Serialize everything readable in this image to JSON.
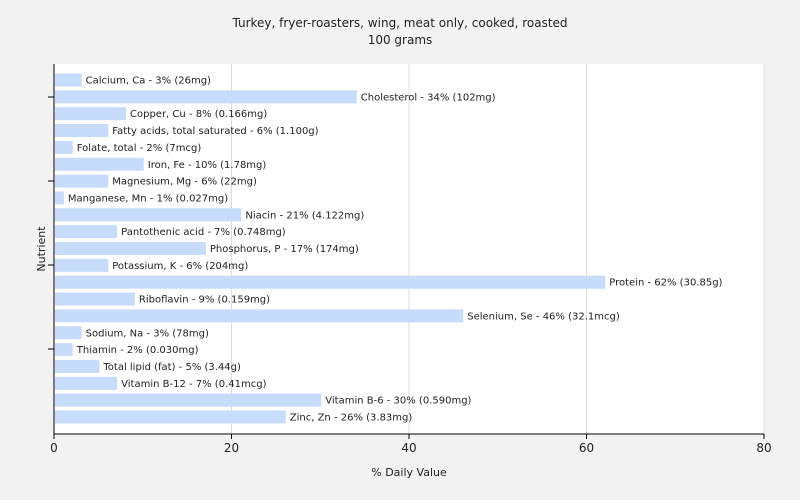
{
  "chart_data": {
    "type": "bar",
    "orientation": "horizontal",
    "title": "Turkey, fryer-roasters, wing, meat only, cooked, roasted",
    "subtitle": "100 grams",
    "xlabel": "% Daily Value",
    "ylabel": "Nutrient",
    "xlim": [
      0,
      80
    ],
    "xticks": [
      "0",
      "20",
      "40",
      "60",
      "80"
    ],
    "grid": true,
    "bar_color": "#c6dcfa",
    "categories": [
      "Calcium, Ca",
      "Cholesterol",
      "Copper, Cu",
      "Fatty acids, total saturated",
      "Folate, total",
      "Iron, Fe",
      "Magnesium, Mg",
      "Manganese, Mn",
      "Niacin",
      "Pantothenic acid",
      "Phosphorus, P",
      "Potassium, K",
      "Protein",
      "Riboflavin",
      "Selenium, Se",
      "Sodium, Na",
      "Thiamin",
      "Total lipid (fat)",
      "Vitamin B-12",
      "Vitamin B-6",
      "Zinc, Zn"
    ],
    "values": [
      3,
      34,
      8,
      6,
      2,
      10,
      6,
      1,
      21,
      7,
      17,
      6,
      62,
      9,
      46,
      3,
      2,
      5,
      7,
      30,
      26
    ],
    "labels": [
      "Calcium, Ca - 3% (26mg)",
      "Cholesterol - 34% (102mg)",
      "Copper, Cu - 8% (0.166mg)",
      "Fatty acids, total saturated - 6% (1.100g)",
      "Folate, total - 2% (7mcg)",
      "Iron, Fe - 10% (1.78mg)",
      "Magnesium, Mg - 6% (22mg)",
      "Manganese, Mn - 1% (0.027mg)",
      "Niacin - 21% (4.122mg)",
      "Pantothenic acid - 7% (0.748mg)",
      "Phosphorus, P - 17% (174mg)",
      "Potassium, K - 6% (204mg)",
      "Protein - 62% (30.85g)",
      "Riboflavin - 9% (0.159mg)",
      "Selenium, Se - 46% (32.1mcg)",
      "Sodium, Na - 3% (78mg)",
      "Thiamin - 2% (0.030mg)",
      "Total lipid (fat) - 5% (3.44g)",
      "Vitamin B-12 - 7% (0.41mcg)",
      "Vitamin B-6 - 30% (0.590mg)",
      "Zinc, Zn - 26% (3.83mg)"
    ]
  }
}
